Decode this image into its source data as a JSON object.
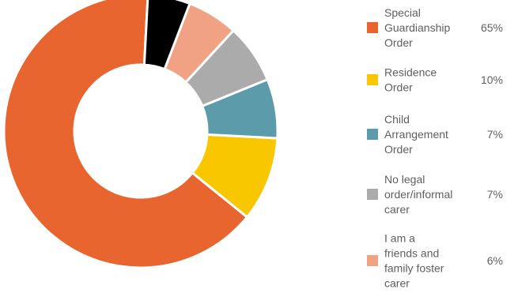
{
  "chart_data": {
    "type": "pie",
    "donut": true,
    "legend_position": "right",
    "slices": [
      {
        "label_lines": [
          "Special",
          "Guardianship",
          "Order"
        ],
        "value": 65,
        "value_label": "65%",
        "color": "#E8652F"
      },
      {
        "label_lines": [
          "Residence",
          "Order"
        ],
        "value": 10,
        "value_label": "10%",
        "color": "#F9C700"
      },
      {
        "label_lines": [
          "Child",
          "Arrangement",
          "Order"
        ],
        "value": 7,
        "value_label": "7%",
        "color": "#5B9BAA"
      },
      {
        "label_lines": [
          "No legal",
          "order/informal",
          "carer"
        ],
        "value": 7,
        "value_label": "7%",
        "color": "#ABABAB"
      },
      {
        "label_lines": [
          "I am a",
          "friends and",
          "family foster",
          "carer"
        ],
        "value": 6,
        "value_label": "6%",
        "color": "#F1A184"
      },
      {
        "label_lines": [],
        "value": 5,
        "value_label": "",
        "color": "#000000"
      }
    ]
  }
}
